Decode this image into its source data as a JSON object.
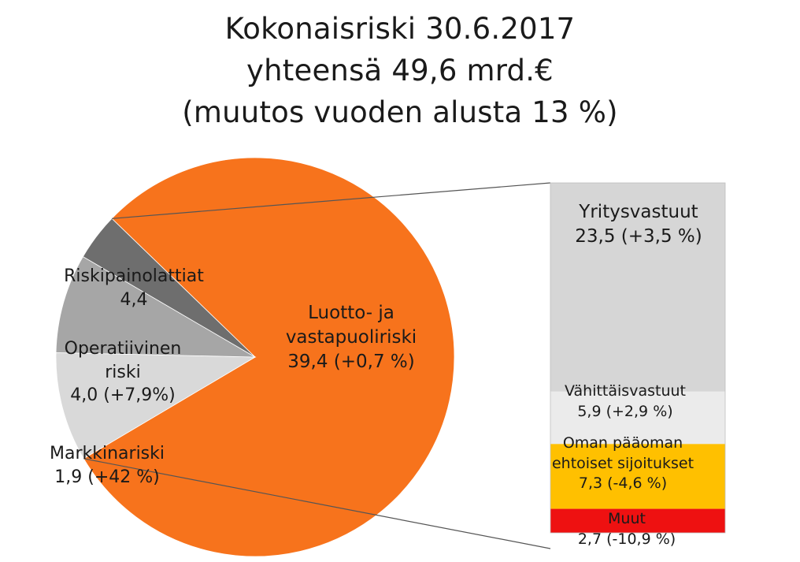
{
  "chart_data": [
    {
      "type": "pie",
      "title": [
        "Kokonaisriski 30.6.2017",
        "yhteensä 49,6 mrd.€",
        "(muutos vuoden alusta 13 %)"
      ],
      "total": 49.6,
      "unit": "mrd.€",
      "slices": [
        {
          "name": "Luotto- ja vastapuoliriski",
          "label": [
            "Luotto- ja",
            "vastapuoliriski",
            "39,4 (+0,7 %)"
          ],
          "value": 39.4,
          "color": "#f7731c"
        },
        {
          "name": "Riskipainolattiat",
          "label": [
            "Riskipainolattiat",
            "4,4"
          ],
          "value": 4.4,
          "color": "#d9d9d9"
        },
        {
          "name": "Operatiivinen riski",
          "label": [
            "Operatiivinen",
            "riski",
            "4,0 (+7,9%)"
          ],
          "value": 4.0,
          "color": "#a6a6a6"
        },
        {
          "name": "Markkinariski",
          "label": [
            "Markkinariski",
            "1,9 (+42 %)"
          ],
          "value": 1.9,
          "color": "#6e6e6e"
        }
      ]
    },
    {
      "type": "bar",
      "stacked": true,
      "breakdown_of": "Luotto- ja vastapuoliriski",
      "segments": [
        {
          "name": "Yritysvastuut",
          "label": [
            "Yritysvastuut",
            "23,5 (+3,5 %)"
          ],
          "value": 23.5,
          "color": "#d6d6d6"
        },
        {
          "name": "Vähittäisvastuut",
          "label": [
            "Vähittäisvastuut",
            "5,9 (+2,9 %)"
          ],
          "value": 5.9,
          "color": "#ebebeb"
        },
        {
          "name": "Oman pääoman ehtoiset sijoitukset",
          "label": [
            "Oman pääoman",
            "ehtoiset sijoitukset",
            "7,3 (-4,6 %)"
          ],
          "value": 7.3,
          "color": "#ffc000"
        },
        {
          "name": "Muut",
          "label": [
            "Muut",
            "2,7 (-10,9 %)"
          ],
          "value": 2.7,
          "color": "#ee1111"
        }
      ]
    }
  ]
}
